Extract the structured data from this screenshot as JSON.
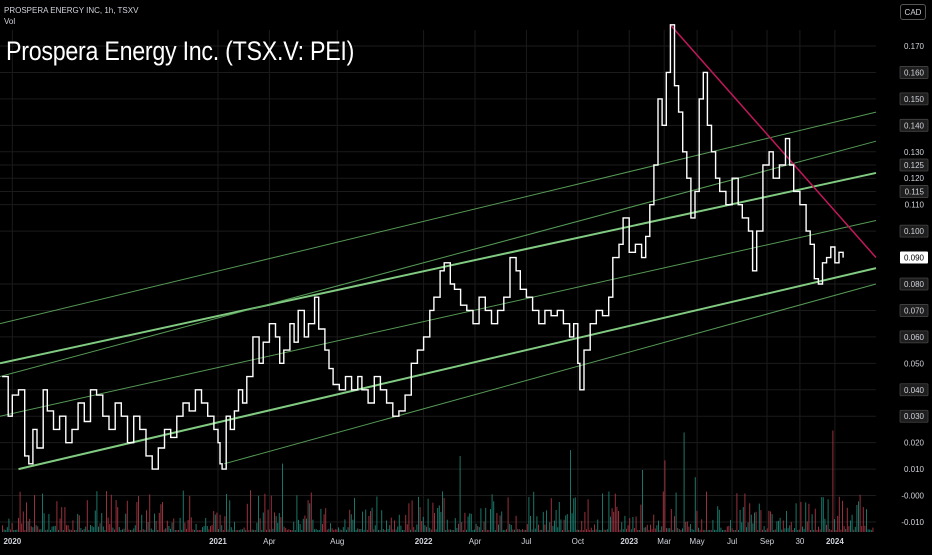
{
  "header": {
    "symbol_line": "PROSPERA ENERGY INC, 1h, TSXV",
    "vol_label": "Vol",
    "currency": "CAD"
  },
  "title": "Prospera Energy Inc. (TSX.V: PEI)",
  "chart_data": {
    "type": "line",
    "title": "Prospera Energy Inc. (TSX.V: PEI)",
    "ylim": [
      -0.012,
      0.178
    ],
    "y_ticks": [
      {
        "label": "0.170",
        "value": 0.17,
        "boxed": false
      },
      {
        "label": "0.160",
        "value": 0.16,
        "boxed": true
      },
      {
        "label": "0.150",
        "value": 0.15,
        "boxed": true
      },
      {
        "label": "0.140",
        "value": 0.14,
        "boxed": true
      },
      {
        "label": "0.130",
        "value": 0.13,
        "boxed": false
      },
      {
        "label": "0.125",
        "value": 0.125,
        "boxed": true
      },
      {
        "label": "0.120",
        "value": 0.12,
        "boxed": false
      },
      {
        "label": "0.115",
        "value": 0.115,
        "boxed": true
      },
      {
        "label": "0.110",
        "value": 0.11,
        "boxed": false
      },
      {
        "label": "0.100",
        "value": 0.1,
        "boxed": true
      },
      {
        "label": "0.080",
        "value": 0.08,
        "boxed": true
      },
      {
        "label": "0.070",
        "value": 0.07,
        "boxed": true
      },
      {
        "label": "0.060",
        "value": 0.06,
        "boxed": true
      },
      {
        "label": "0.050",
        "value": 0.05,
        "boxed": false
      },
      {
        "label": "0.040",
        "value": 0.04,
        "boxed": true
      },
      {
        "label": "0.030",
        "value": 0.03,
        "boxed": true
      },
      {
        "label": "0.020",
        "value": 0.02,
        "boxed": false
      },
      {
        "label": "0.010",
        "value": 0.01,
        "boxed": false
      },
      {
        "label": "-0.000",
        "value": 0.0,
        "boxed": false
      },
      {
        "label": "-0.010",
        "value": -0.01,
        "boxed": false
      }
    ],
    "last_price": {
      "label": "0.090",
      "value": 0.09
    },
    "x_ticks": [
      {
        "label": "2020",
        "t": 2020.0,
        "bold": true
      },
      {
        "label": "2021",
        "t": 2021.0,
        "bold": true
      },
      {
        "label": "Apr",
        "t": 2021.25,
        "bold": false
      },
      {
        "label": "Aug",
        "t": 2021.58,
        "bold": false
      },
      {
        "label": "2022",
        "t": 2022.0,
        "bold": true
      },
      {
        "label": "Apr",
        "t": 2022.25,
        "bold": false
      },
      {
        "label": "Jul",
        "t": 2022.5,
        "bold": false
      },
      {
        "label": "Oct",
        "t": 2022.75,
        "bold": false
      },
      {
        "label": "2023",
        "t": 2023.0,
        "bold": true
      },
      {
        "label": "Mar",
        "t": 2023.17,
        "bold": false
      },
      {
        "label": "May",
        "t": 2023.33,
        "bold": false
      },
      {
        "label": "Jul",
        "t": 2023.5,
        "bold": false
      },
      {
        "label": "Sep",
        "t": 2023.67,
        "bold": false
      },
      {
        "label": "30",
        "t": 2023.83,
        "bold": false
      },
      {
        "label": "2024",
        "t": 2024.0,
        "bold": true
      }
    ],
    "xlim": [
      2019.94,
      2024.2
    ],
    "price_series": {
      "name": "",
      "points": [
        [
          2019.95,
          0.045
        ],
        [
          2019.98,
          0.03
        ],
        [
          2020.0,
          0.038
        ],
        [
          2020.03,
          0.04
        ],
        [
          2020.06,
          0.015
        ],
        [
          2020.08,
          0.012
        ],
        [
          2020.1,
          0.025
        ],
        [
          2020.12,
          0.018
        ],
        [
          2020.15,
          0.04
        ],
        [
          2020.17,
          0.032
        ],
        [
          2020.2,
          0.025
        ],
        [
          2020.23,
          0.03
        ],
        [
          2020.26,
          0.02
        ],
        [
          2020.29,
          0.025
        ],
        [
          2020.32,
          0.035
        ],
        [
          2020.35,
          0.028
        ],
        [
          2020.38,
          0.04
        ],
        [
          2020.41,
          0.038
        ],
        [
          2020.44,
          0.03
        ],
        [
          2020.47,
          0.025
        ],
        [
          2020.5,
          0.035
        ],
        [
          2020.53,
          0.03
        ],
        [
          2020.56,
          0.02
        ],
        [
          2020.59,
          0.03
        ],
        [
          2020.62,
          0.025
        ],
        [
          2020.65,
          0.015
        ],
        [
          2020.68,
          0.01
        ],
        [
          2020.71,
          0.018
        ],
        [
          2020.74,
          0.025
        ],
        [
          2020.77,
          0.022
        ],
        [
          2020.8,
          0.03
        ],
        [
          2020.83,
          0.035
        ],
        [
          2020.86,
          0.032
        ],
        [
          2020.89,
          0.04
        ],
        [
          2020.92,
          0.035
        ],
        [
          2020.95,
          0.03
        ],
        [
          2020.98,
          0.025
        ],
        [
          2021.0,
          0.02
        ],
        [
          2021.01,
          0.012
        ],
        [
          2021.02,
          0.01
        ],
        [
          2021.04,
          0.03
        ],
        [
          2021.06,
          0.025
        ],
        [
          2021.08,
          0.032
        ],
        [
          2021.1,
          0.04
        ],
        [
          2021.12,
          0.035
        ],
        [
          2021.14,
          0.045
        ],
        [
          2021.17,
          0.06
        ],
        [
          2021.2,
          0.05
        ],
        [
          2021.22,
          0.058
        ],
        [
          2021.25,
          0.065
        ],
        [
          2021.28,
          0.06
        ],
        [
          2021.3,
          0.05
        ],
        [
          2021.32,
          0.055
        ],
        [
          2021.35,
          0.065
        ],
        [
          2021.37,
          0.058
        ],
        [
          2021.39,
          0.07
        ],
        [
          2021.42,
          0.06
        ],
        [
          2021.44,
          0.065
        ],
        [
          2021.47,
          0.075
        ],
        [
          2021.49,
          0.063
        ],
        [
          2021.52,
          0.055
        ],
        [
          2021.54,
          0.048
        ],
        [
          2021.56,
          0.042
        ],
        [
          2021.59,
          0.04
        ],
        [
          2021.62,
          0.045
        ],
        [
          2021.65,
          0.04
        ],
        [
          2021.68,
          0.045
        ],
        [
          2021.7,
          0.04
        ],
        [
          2021.73,
          0.035
        ],
        [
          2021.76,
          0.045
        ],
        [
          2021.79,
          0.04
        ],
        [
          2021.82,
          0.035
        ],
        [
          2021.85,
          0.03
        ],
        [
          2021.88,
          0.032
        ],
        [
          2021.91,
          0.038
        ],
        [
          2021.94,
          0.05
        ],
        [
          2021.97,
          0.055
        ],
        [
          2022.0,
          0.06
        ],
        [
          2022.03,
          0.07
        ],
        [
          2022.05,
          0.075
        ],
        [
          2022.08,
          0.085
        ],
        [
          2022.1,
          0.088
        ],
        [
          2022.13,
          0.08
        ],
        [
          2022.15,
          0.078
        ],
        [
          2022.18,
          0.072
        ],
        [
          2022.21,
          0.07
        ],
        [
          2022.24,
          0.065
        ],
        [
          2022.27,
          0.075
        ],
        [
          2022.3,
          0.07
        ],
        [
          2022.33,
          0.065
        ],
        [
          2022.36,
          0.07
        ],
        [
          2022.39,
          0.075
        ],
        [
          2022.42,
          0.09
        ],
        [
          2022.45,
          0.085
        ],
        [
          2022.47,
          0.078
        ],
        [
          2022.5,
          0.075
        ],
        [
          2022.53,
          0.07
        ],
        [
          2022.56,
          0.065
        ],
        [
          2022.59,
          0.07
        ],
        [
          2022.62,
          0.068
        ],
        [
          2022.65,
          0.07
        ],
        [
          2022.68,
          0.065
        ],
        [
          2022.71,
          0.06
        ],
        [
          2022.73,
          0.065
        ],
        [
          2022.75,
          0.05
        ],
        [
          2022.76,
          0.04
        ],
        [
          2022.78,
          0.055
        ],
        [
          2022.81,
          0.065
        ],
        [
          2022.84,
          0.07
        ],
        [
          2022.87,
          0.068
        ],
        [
          2022.9,
          0.075
        ],
        [
          2022.92,
          0.09
        ],
        [
          2022.95,
          0.095
        ],
        [
          2022.97,
          0.105
        ],
        [
          2023.0,
          0.092
        ],
        [
          2023.03,
          0.095
        ],
        [
          2023.06,
          0.09
        ],
        [
          2023.08,
          0.098
        ],
        [
          2023.1,
          0.11
        ],
        [
          2023.12,
          0.125
        ],
        [
          2023.14,
          0.15
        ],
        [
          2023.16,
          0.14
        ],
        [
          2023.18,
          0.16
        ],
        [
          2023.2,
          0.178
        ],
        [
          2023.22,
          0.155
        ],
        [
          2023.24,
          0.145
        ],
        [
          2023.26,
          0.13
        ],
        [
          2023.28,
          0.12
        ],
        [
          2023.3,
          0.105
        ],
        [
          2023.32,
          0.115
        ],
        [
          2023.34,
          0.15
        ],
        [
          2023.36,
          0.16
        ],
        [
          2023.38,
          0.14
        ],
        [
          2023.4,
          0.13
        ],
        [
          2023.42,
          0.12
        ],
        [
          2023.44,
          0.115
        ],
        [
          2023.47,
          0.11
        ],
        [
          2023.5,
          0.12
        ],
        [
          2023.53,
          0.11
        ],
        [
          2023.55,
          0.105
        ],
        [
          2023.58,
          0.1
        ],
        [
          2023.6,
          0.085
        ],
        [
          2023.62,
          0.1
        ],
        [
          2023.65,
          0.125
        ],
        [
          2023.68,
          0.13
        ],
        [
          2023.7,
          0.12
        ],
        [
          2023.73,
          0.125
        ],
        [
          2023.76,
          0.135
        ],
        [
          2023.78,
          0.125
        ],
        [
          2023.8,
          0.115
        ],
        [
          2023.83,
          0.11
        ],
        [
          2023.86,
          0.1
        ],
        [
          2023.88,
          0.095
        ],
        [
          2023.9,
          0.082
        ],
        [
          2023.92,
          0.08
        ],
        [
          2023.94,
          0.088
        ],
        [
          2023.96,
          0.09
        ],
        [
          2023.98,
          0.094
        ],
        [
          2024.0,
          0.088
        ],
        [
          2024.02,
          0.092
        ],
        [
          2024.04,
          0.09
        ]
      ]
    },
    "channels": {
      "lower_main": {
        "t0": 2020.03,
        "v0": 0.01,
        "t1": 2024.2,
        "v1": 0.086
      },
      "lower_outer": {
        "t0": 2021.03,
        "v0": 0.012,
        "t1": 2024.2,
        "v1": 0.08
      },
      "mid_green": {
        "t0": 2019.94,
        "v0": 0.05,
        "t1": 2024.2,
        "v1": 0.122
      },
      "mid_thin": {
        "t0": 2019.94,
        "v0": 0.03,
        "t1": 2024.2,
        "v1": 0.104
      },
      "upper_thin": {
        "t0": 2019.94,
        "v0": 0.065,
        "t1": 2024.2,
        "v1": 0.145
      },
      "upper_thin2": {
        "t0": 2019.94,
        "v0": 0.045,
        "t1": 2024.2,
        "v1": 0.134
      }
    },
    "resistance_line": {
      "t0": 2023.2,
      "v0": 0.178,
      "t1": 2024.2,
      "v1": 0.09
    },
    "volume_scale_max": 0.025,
    "colors": {
      "price": "#ffffff",
      "channel_strong": "#8fe08f",
      "channel_thin": "#5faa5f",
      "resistance": "#c2185b",
      "vol_up": "#1f8a7a",
      "vol_down": "#b23a48",
      "grid": "#1b1b1b"
    }
  }
}
